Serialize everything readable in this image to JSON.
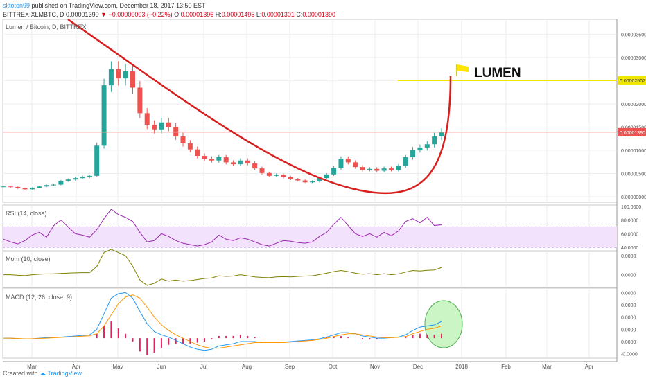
{
  "header": {
    "author": "sktoton99",
    "published": " published on TradingView.com, December 18, 2017 13:50 EST"
  },
  "ohlc": {
    "symbol": "BITTREX:XLMBTC, D",
    "price": "0.00001390",
    "arrow": "▼",
    "change": "−0.00000003 (−0.22%)",
    "o_label": "O:",
    "o": "0.00001396",
    "h_label": "H:",
    "h": "0.00001495",
    "l_label": "L:",
    "l": "0.00001301",
    "c_label": "C:",
    "c": "0.00001390"
  },
  "footer": {
    "created": "Created with",
    "brand": "TradingView"
  },
  "colors": {
    "up": "#26a69a",
    "down": "#ef5350",
    "arc": "#d91e1e",
    "target": "#f2e600",
    "rsi": "#9c27b0",
    "rsi_band": "#f3e2fb",
    "mom": "#808000",
    "macd": "#2196f3",
    "signal": "#ff9800",
    "hist": "#e91e63",
    "circle_fill": "#b9f2b1",
    "circle_stroke": "#4caf50"
  },
  "chart_data": [
    {
      "type": "candlestick",
      "title": "Lumen / Bitcoin, D, BITTREX",
      "x_labels": [
        "Mar",
        "Apr",
        "May",
        "Jun",
        "Jul",
        "Aug",
        "Sep",
        "Oct",
        "Nov",
        "Dec",
        "2018",
        "Feb",
        "Mar",
        "Apr"
      ],
      "y_ticks": [
        "0.00003500",
        "0.00003000",
        "0.00002500",
        "0.00002000",
        "0.00001500",
        "0.00001000",
        "0.00000500",
        "0.00000000"
      ],
      "ylim": [
        0,
        3.7e-05
      ],
      "last_price_label": "0.00001390",
      "last_price": 1.39e-05,
      "target_label": "0.00002507",
      "target": 2.507e-05,
      "annotation": "LUMEN",
      "close_series": [
        2.2e-06,
        2.1e-06,
        1.8e-06,
        1.6e-06,
        1.9e-06,
        2.2e-06,
        2.5e-06,
        2.6e-06,
        3.4e-06,
        3.7e-06,
        4e-06,
        4.3e-06,
        4.5e-06,
        1.1e-05,
        2.4e-05,
        2.75e-05,
        2.55e-05,
        2.7e-05,
        2.35e-05,
        1.8e-05,
        1.55e-05,
        1.45e-05,
        1.6e-05,
        1.5e-05,
        1.3e-05,
        1.15e-05,
        1.02e-05,
        8.8e-06,
        8.2e-06,
        7.8e-06,
        8.5e-06,
        7.4e-06,
        7e-06,
        7.8e-06,
        7.2e-06,
        6.1e-06,
        5.1e-06,
        4.5e-06,
        4.7e-06,
        4.2e-06,
        3.8e-06,
        3.5e-06,
        3.1e-06,
        3.3e-06,
        4e-06,
        4.8e-06,
        6.2e-06,
        8.2e-06,
        7.4e-06,
        6.4e-06,
        5.8e-06,
        6e-06,
        5.6e-06,
        6.1e-06,
        5.8e-06,
        6.6e-06,
        8.5e-06,
        1.01e-05,
        1.06e-05,
        1.13e-05,
        1.3e-05,
        1.39e-05
      ]
    },
    {
      "type": "line",
      "title": "RSI (14, close)",
      "y_ticks": [
        "100.0000",
        "80.0000",
        "60.0000",
        "40.0000"
      ],
      "ylim": [
        35,
        102
      ],
      "band": [
        40,
        70
      ],
      "values": [
        52,
        48,
        45,
        50,
        58,
        62,
        55,
        72,
        80,
        70,
        60,
        58,
        55,
        66,
        82,
        96,
        88,
        84,
        78,
        62,
        48,
        50,
        60,
        56,
        50,
        46,
        44,
        42,
        44,
        48,
        58,
        52,
        50,
        54,
        52,
        48,
        44,
        42,
        46,
        50,
        49,
        47,
        46,
        48,
        56,
        62,
        74,
        84,
        72,
        60,
        56,
        60,
        55,
        62,
        57,
        64,
        78,
        82,
        76,
        84,
        72,
        73
      ]
    },
    {
      "type": "line",
      "title": "Mom (10, close)",
      "y_ticks": [
        "0.0000",
        "0.0000"
      ],
      "ylim": [
        -1.2e-05,
        2.2e-05
      ],
      "values": [
        0.0,
        0.0,
        -5e-07,
        -8e-07,
        0.0,
        5e-07,
        8e-07,
        9e-07,
        1.2e-06,
        1.6e-06,
        1.8e-06,
        2e-06,
        2e-06,
        7.8e-06,
        2.1e-05,
        2.4e-05,
        2.1e-05,
        1.8e-05,
        8e-06,
        -5e-06,
        -1e-05,
        -8e-06,
        -4e-06,
        -6e-06,
        -5e-06,
        -6e-06,
        -5.5e-06,
        -4.5e-06,
        -3.5e-06,
        -3e-06,
        -1e-06,
        -1.5e-06,
        -1.2e-06,
        0.0,
        -1e-06,
        -2e-06,
        -2.5e-06,
        -2.8e-06,
        -2e-06,
        -1.8e-06,
        -2e-06,
        -1.5e-06,
        -1.2e-06,
        -1e-06,
        2e-07,
        1.5e-06,
        3e-06,
        4e-06,
        3e-06,
        1.5e-06,
        5e-07,
        1e-06,
        0.0,
        1e-06,
        0.0,
        8e-07,
        2.5e-06,
        4e-06,
        3.5e-06,
        4.2e-06,
        4.5e-06,
        6.8e-06
      ]
    },
    {
      "type": "line",
      "title": "MACD (12, 26, close, 9)",
      "y_ticks": [
        "0.0000",
        "0.0000",
        "0.0000",
        "0.0000",
        "0.0000",
        "-0.0000"
      ],
      "ylim": [
        -1.8e-06,
        4.5e-06
      ],
      "series": [
        {
          "values": [
            0.0,
            0.0,
            -5e-08,
            -8e-08,
            -5e-08,
            0.0,
            5e-08,
            8e-08,
            1e-07,
            1.5e-07,
            2e-07,
            2.5e-07,
            3e-07,
            8e-07,
            2.2e-06,
            3.6e-06,
            4e-06,
            4.1e-06,
            3.6e-06,
            2.4e-06,
            1.3e-06,
            6e-07,
            3e-07,
            1e-07,
            -2e-07,
            -5e-07,
            -8e-07,
            -1e-06,
            -1.1e-06,
            -1e-06,
            -7e-07,
            -6e-07,
            -5e-07,
            -3e-07,
            -3e-07,
            -3e-07,
            -4e-07,
            -4e-07,
            -4e-07,
            -3.5e-07,
            -3e-07,
            -2.5e-07,
            -2e-07,
            -1.5e-07,
            -5e-08,
            1e-07,
            3e-07,
            5e-07,
            5e-07,
            4e-07,
            2e-07,
            1e-07,
            0.0,
            0.0,
            5e-08,
            1e-07,
            3e-07,
            7e-07,
            1e-06,
            1.1e-06,
            1.2e-06,
            1.5e-06
          ]
        },
        {
          "values": [
            0.0,
            0.0,
            -2e-08,
            -5e-08,
            -5e-08,
            -2e-08,
            0.0,
            4e-08,
            7e-08,
            1e-07,
            1.4e-07,
            1.8e-07,
            2.2e-07,
            4e-07,
            1.1e-06,
            2.1e-06,
            3.1e-06,
            3.7e-06,
            3.9e-06,
            3.6e-06,
            2.8e-06,
            1.9e-06,
            1.2e-06,
            7e-07,
            3e-07,
            0.0,
            -3e-07,
            -6e-07,
            -8e-07,
            -9e-07,
            -9e-07,
            -8e-07,
            -7e-07,
            -6e-07,
            -5e-07,
            -4e-07,
            -4e-07,
            -4e-07,
            -4e-07,
            -4e-07,
            -3.5e-07,
            -3e-07,
            -2.5e-07,
            -2e-07,
            -1.2e-07,
            0.0,
            1.5e-07,
            3e-07,
            4e-07,
            4e-07,
            3e-07,
            2e-07,
            1e-07,
            5e-08,
            5e-08,
            8e-08,
            1.5e-07,
            4e-07,
            6e-07,
            8e-07,
            9e-07,
            1.1e-06
          ]
        }
      ],
      "histogram": [
        0,
        0,
        0,
        0,
        0,
        0,
        0,
        0,
        0,
        0,
        0,
        0,
        0,
        4e-07,
        1.1e-06,
        1.5e-06,
        9e-07,
        4e-07,
        -3e-07,
        -1.2e-06,
        -1.5e-06,
        -1.3e-06,
        -9e-07,
        -6e-07,
        -5e-07,
        -5e-07,
        -5e-07,
        -4e-07,
        -3e-07,
        -1e-07,
        2e-07,
        2e-07,
        2e-07,
        3e-07,
        2e-07,
        1e-07,
        0,
        0,
        0,
        0,
        0,
        0,
        0,
        0,
        0,
        1e-07,
        1.5e-07,
        2e-07,
        1e-07,
        0,
        -1e-07,
        -1e-07,
        -1e-07,
        0,
        0,
        0,
        1e-07,
        3e-07,
        4e-07,
        3e-07,
        3e-07,
        4e-07
      ]
    }
  ]
}
